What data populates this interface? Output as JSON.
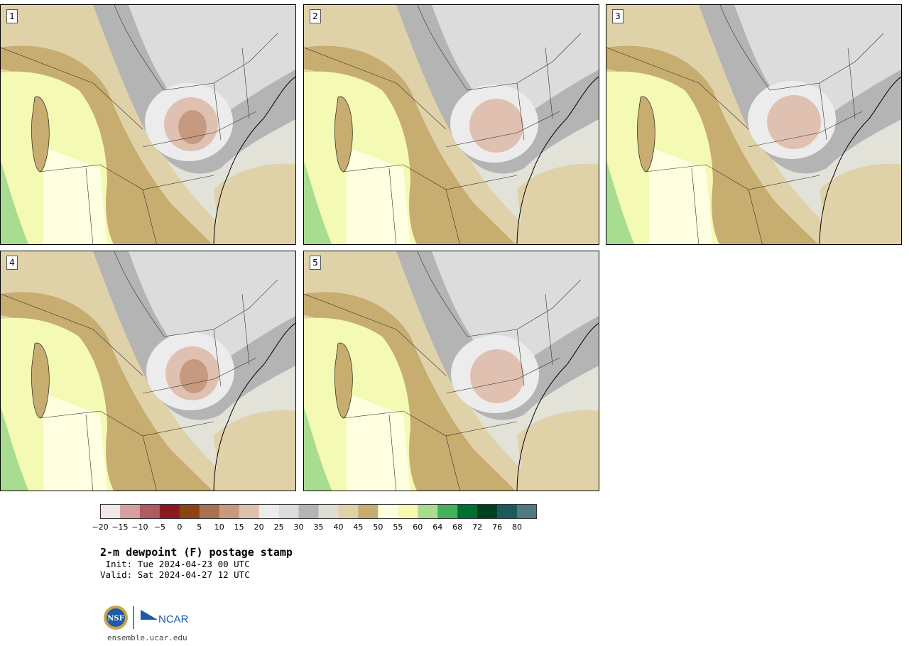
{
  "panels": [
    {
      "label": "1",
      "variant": 0
    },
    {
      "label": "2",
      "variant": 1
    },
    {
      "label": "3",
      "variant": 2
    },
    {
      "label": "4",
      "variant": 3
    },
    {
      "label": "5",
      "variant": 4
    }
  ],
  "colorbar": {
    "colors": [
      "#f2e6e6",
      "#d6a0a3",
      "#b05b5f",
      "#8b1a1f",
      "#8b4513",
      "#aa7050",
      "#c59a80",
      "#e0c0b0",
      "#ececec",
      "#dcdcdc",
      "#b4b4b4",
      "#deded0",
      "#e0d2a8",
      "#c8ad70",
      "#fefee0",
      "#f4f9b4",
      "#a8dc90",
      "#44b060",
      "#007030",
      "#004020",
      "#1f5a5a",
      "#4f7a80"
    ],
    "ticks": [
      "−20",
      "−15",
      "−10",
      "−5",
      "0",
      "5",
      "10",
      "15",
      "20",
      "25",
      "30",
      "35",
      "40",
      "45",
      "50",
      "55",
      "60",
      "64",
      "68",
      "72",
      "76",
      "80"
    ]
  },
  "title": "2-m dewpoint (F) postage stamp",
  "init": " Init: Tue 2024-04-23 00 UTC",
  "valid": "Valid: Sat 2024-04-27 12 UTC",
  "logo": {
    "left_text": "NSF",
    "right_text": "NCAR"
  },
  "url": "ensemble.ucar.edu",
  "palette": {
    "gray_dark": "#b4b4b4",
    "gray_light": "#dcdcdc",
    "tan_light": "#e0d2a8",
    "tan_dark": "#c8ad70",
    "yellow_light": "#fefee0",
    "yellow": "#f4f9b4",
    "green": "#a8dc90",
    "brown_light": "#e0c0b0",
    "brown": "#c59a80",
    "white": "#ececec"
  }
}
